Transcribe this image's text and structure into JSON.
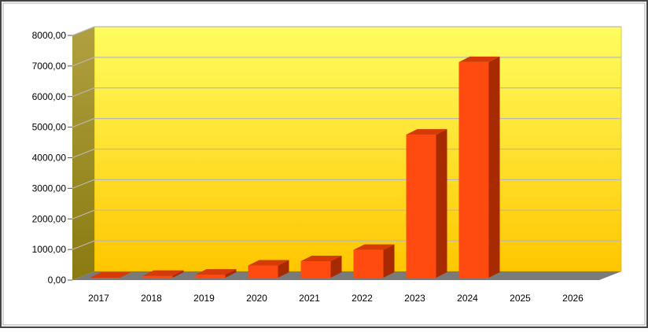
{
  "chart_data": {
    "type": "bar",
    "categories": [
      "2017",
      "2018",
      "2019",
      "2020",
      "2021",
      "2022",
      "2023",
      "2024",
      "2025",
      "2026"
    ],
    "values": [
      0,
      60,
      100,
      400,
      540,
      910,
      4680,
      7050,
      null,
      null
    ],
    "title": "",
    "xlabel": "",
    "ylabel": "",
    "ylim": [
      0,
      8000
    ],
    "yticks": [
      "0,00",
      "1000,00",
      "2000,00",
      "3000,00",
      "4000,00",
      "5000,00",
      "6000,00",
      "7000,00",
      "8000,00"
    ],
    "grid": true,
    "style": "3d",
    "colors": {
      "bar_front": "#ff4a10",
      "bar_side": "#a82a00",
      "bar_top": "#d63a08",
      "wall_top": "#fffd60",
      "wall_bottom": "#ffc600",
      "side_wall": "#a89a30",
      "floor": "#7a7a7a",
      "grid": "#b8b8b8"
    }
  }
}
